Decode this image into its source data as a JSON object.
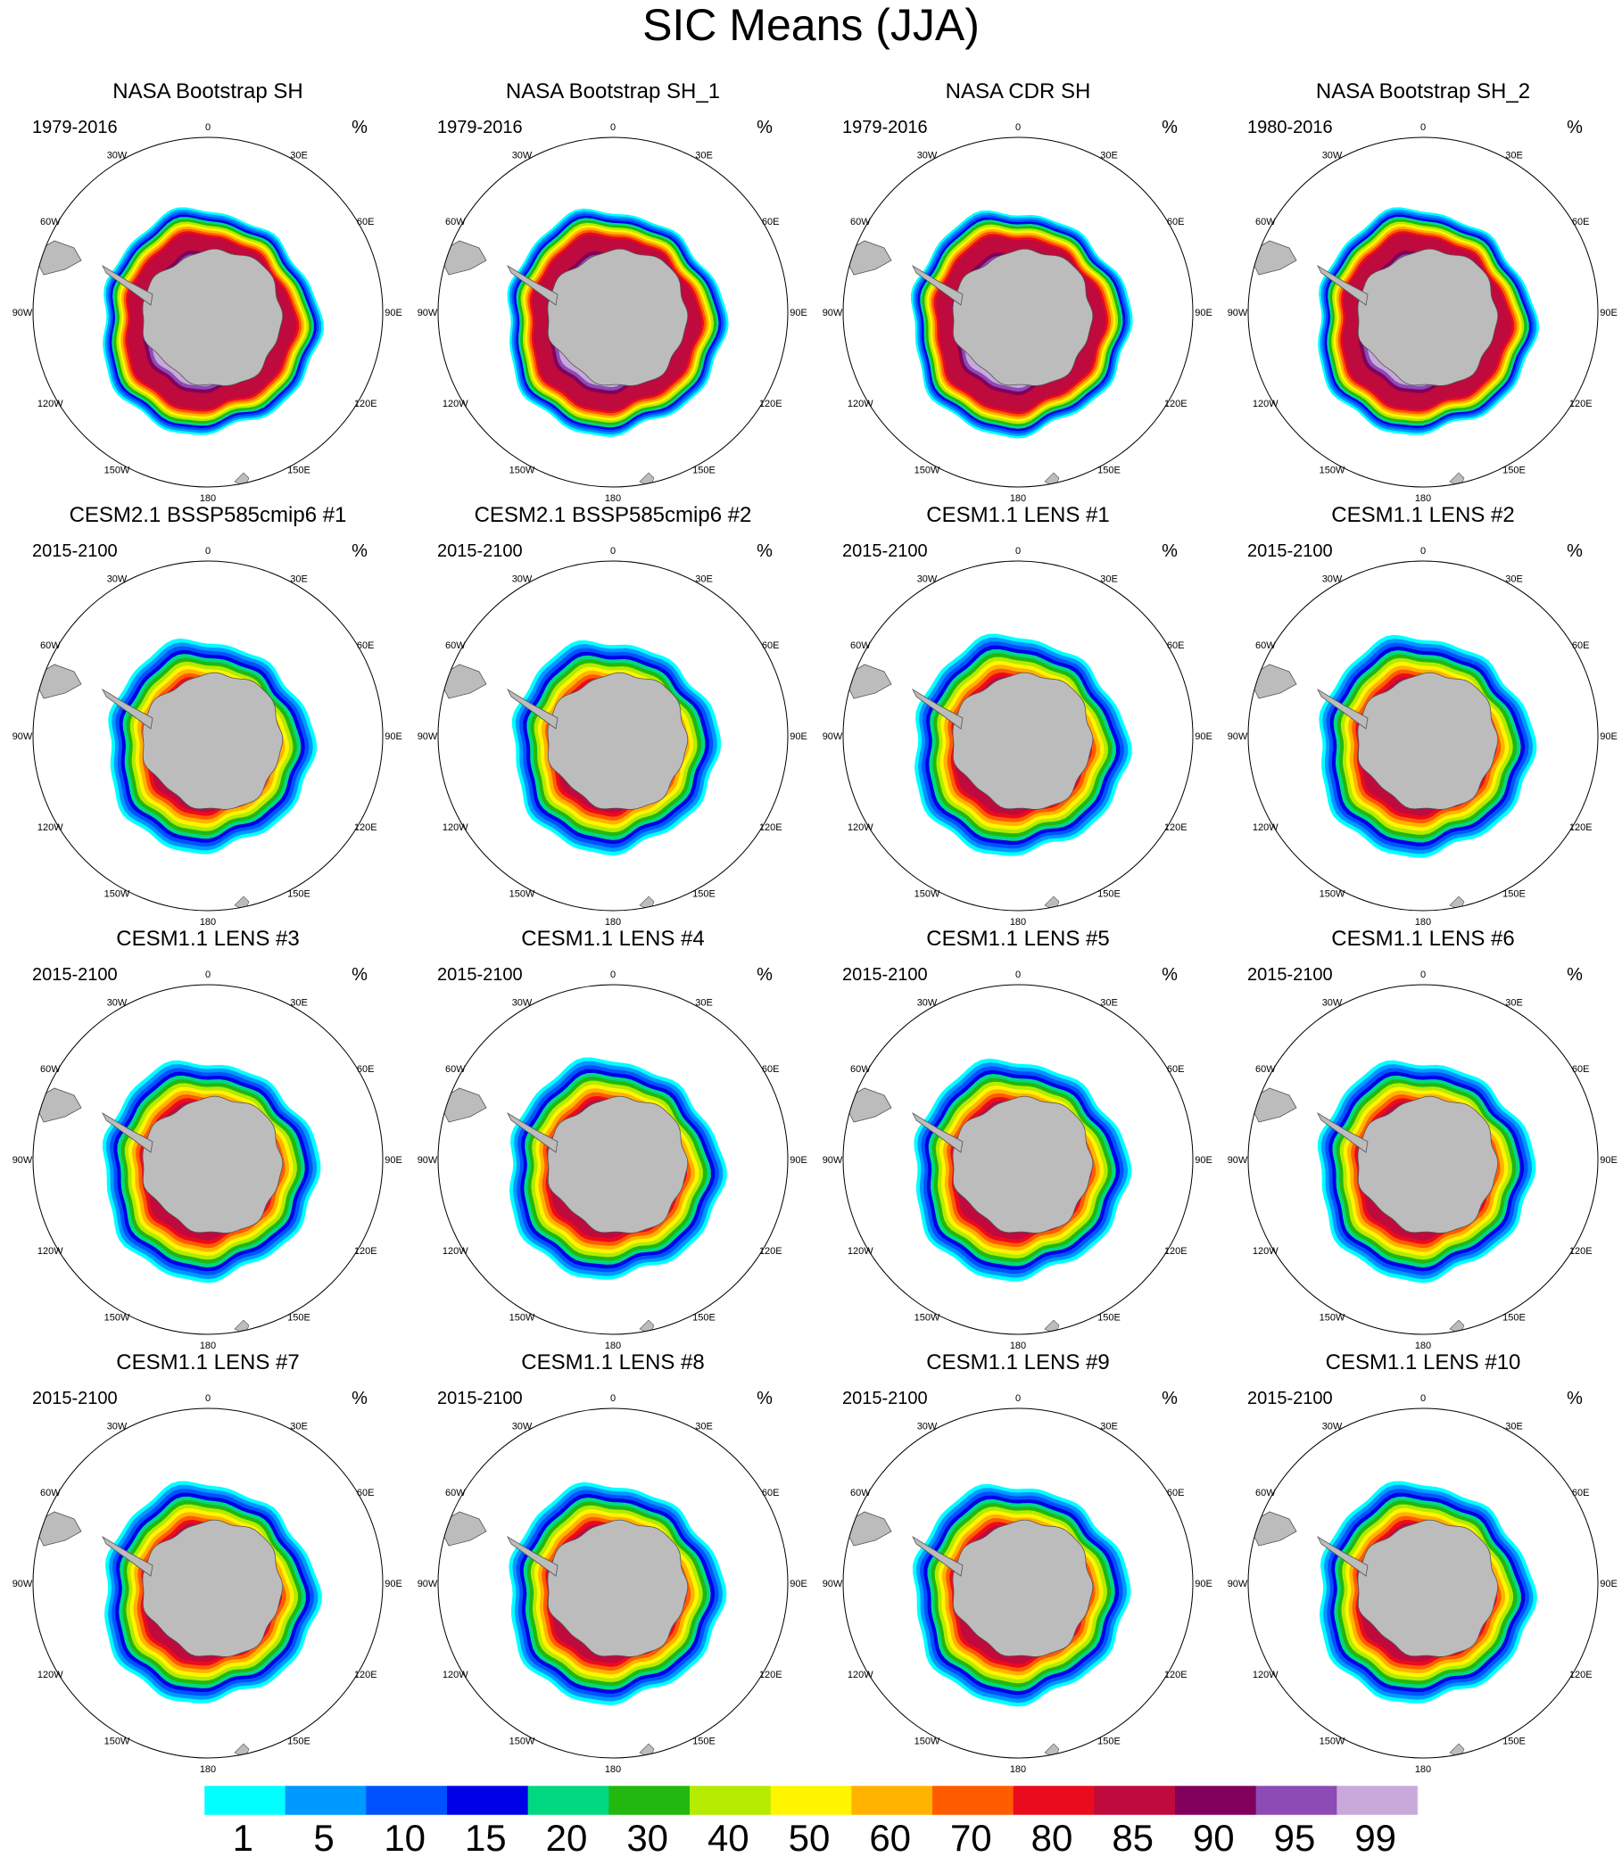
{
  "chart_data": {
    "type": "polar-stereographic-map-panels",
    "title": "SIC Means (JJA)",
    "units": "%",
    "variable": "Sea ice concentration, Southern Hemisphere",
    "lon_labels": [
      "0",
      "30E",
      "60E",
      "90E",
      "120E",
      "150E",
      "180",
      "150W",
      "120W",
      "90W",
      "60W",
      "30W"
    ],
    "panels": [
      {
        "title": "NASA Bootstrap SH",
        "period": "1979-2016",
        "units": "%"
      },
      {
        "title": "NASA Bootstrap SH_1",
        "period": "1979-2016",
        "units": "%"
      },
      {
        "title": "NASA CDR SH",
        "period": "1979-2016",
        "units": "%"
      },
      {
        "title": "NASA Bootstrap SH_2",
        "period": "1980-2016",
        "units": "%"
      },
      {
        "title": "CESM2.1 BSSP585cmip6 #1",
        "period": "2015-2100",
        "units": "%"
      },
      {
        "title": "CESM2.1 BSSP585cmip6 #2",
        "period": "2015-2100",
        "units": "%"
      },
      {
        "title": "CESM1.1 LENS #1",
        "period": "2015-2100",
        "units": "%"
      },
      {
        "title": "CESM1.1 LENS #2",
        "period": "2015-2100",
        "units": "%"
      },
      {
        "title": "CESM1.1 LENS #3",
        "period": "2015-2100",
        "units": "%"
      },
      {
        "title": "CESM1.1 LENS #4",
        "period": "2015-2100",
        "units": "%"
      },
      {
        "title": "CESM1.1 LENS #5",
        "period": "2015-2100",
        "units": "%"
      },
      {
        "title": "CESM1.1 LENS #6",
        "period": "2015-2100",
        "units": "%"
      },
      {
        "title": "CESM1.1 LENS #7",
        "period": "2015-2100",
        "units": "%"
      },
      {
        "title": "CESM1.1 LENS #8",
        "period": "2015-2100",
        "units": "%"
      },
      {
        "title": "CESM1.1 LENS #9",
        "period": "2015-2100",
        "units": "%"
      },
      {
        "title": "CESM1.1 LENS #10",
        "period": "2015-2100",
        "units": "%"
      }
    ],
    "colorbar": {
      "levels": [
        "1",
        "5",
        "10",
        "15",
        "20",
        "30",
        "40",
        "50",
        "60",
        "70",
        "80",
        "85",
        "90",
        "95",
        "99"
      ],
      "colors": [
        "#00ffff",
        "#0099ff",
        "#0052ff",
        "#0000e6",
        "#00d980",
        "#22b80f",
        "#b4eb00",
        "#fff500",
        "#ffb300",
        "#ff5c00",
        "#eb0b1e",
        "#be0a3c",
        "#80005c",
        "#8c4bb5",
        "#c8a9d9"
      ]
    },
    "land_color": "#bcbcbc"
  }
}
